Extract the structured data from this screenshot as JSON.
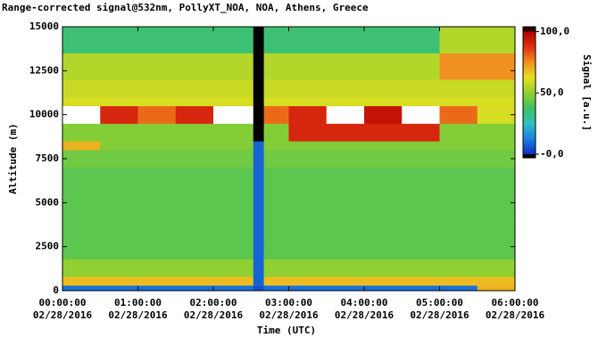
{
  "chart_data": {
    "type": "heatmap",
    "title": "Range-corrected signal@532nm, PollyXT_NOA, NOA, Athens, Greece",
    "xlabel": "Time (UTC)",
    "ylabel": "Altitude (m)",
    "colorbar_label": "Signal [a.u.]",
    "x_edges": [
      0,
      0.5,
      1,
      1.5,
      2,
      2.53,
      2.67,
      3,
      3.5,
      4,
      4.5,
      5,
      5.5,
      6
    ],
    "y_edges": [
      0,
      300,
      800,
      1800,
      2500,
      4000,
      5500,
      7000,
      8000,
      8500,
      9500,
      10500,
      11000,
      12000,
      13500,
      15000
    ],
    "z": [
      [
        10,
        10,
        10,
        10,
        10,
        5,
        10,
        10,
        10,
        10,
        10,
        10,
        70
      ],
      [
        68,
        68,
        68,
        68,
        68,
        8,
        68,
        68,
        68,
        68,
        68,
        68,
        68
      ],
      [
        50,
        50,
        50,
        50,
        50,
        8,
        50,
        50,
        50,
        50,
        50,
        50,
        50
      ],
      [
        42,
        42,
        42,
        42,
        42,
        8,
        42,
        42,
        42,
        42,
        42,
        42,
        42
      ],
      [
        42,
        42,
        42,
        42,
        42,
        8,
        42,
        42,
        42,
        42,
        42,
        42,
        42
      ],
      [
        42,
        42,
        42,
        42,
        42,
        8,
        42,
        42,
        42,
        42,
        42,
        42,
        42
      ],
      [
        42,
        42,
        42,
        42,
        42,
        8,
        42,
        42,
        42,
        42,
        42,
        42,
        42
      ],
      [
        45,
        45,
        45,
        45,
        45,
        8,
        45,
        45,
        45,
        45,
        45,
        45,
        45
      ],
      [
        70,
        48,
        48,
        48,
        48,
        8,
        48,
        48,
        48,
        48,
        48,
        48,
        48
      ],
      [
        48,
        48,
        48,
        48,
        48,
        -5,
        48,
        90,
        90,
        90,
        90,
        48,
        48
      ],
      [
        105,
        90,
        80,
        90,
        105,
        -5,
        80,
        90,
        105,
        95,
        105,
        80,
        60
      ],
      [
        60,
        60,
        60,
        60,
        60,
        -5,
        60,
        60,
        60,
        60,
        60,
        60,
        60
      ],
      [
        58,
        58,
        58,
        58,
        58,
        -5,
        58,
        58,
        58,
        58,
        58,
        58,
        58
      ],
      [
        55,
        55,
        55,
        55,
        55,
        -5,
        55,
        55,
        55,
        55,
        55,
        75,
        75
      ],
      [
        35,
        35,
        35,
        35,
        35,
        -5,
        35,
        35,
        35,
        35,
        35,
        55,
        55
      ]
    ],
    "xlim": [
      0,
      6
    ],
    "ylim": [
      0,
      15000
    ],
    "clim": [
      -3,
      104
    ],
    "xticks": [
      {
        "value": 0,
        "label": "00:00:00",
        "date": "02/28/2016"
      },
      {
        "value": 1,
        "label": "01:00:00",
        "date": "02/28/2016"
      },
      {
        "value": 2,
        "label": "02:00:00",
        "date": "02/28/2016"
      },
      {
        "value": 3,
        "label": "03:00:00",
        "date": "02/28/2016"
      },
      {
        "value": 4,
        "label": "04:00:00",
        "date": "02/28/2016"
      },
      {
        "value": 5,
        "label": "05:00:00",
        "date": "02/28/2016"
      },
      {
        "value": 6,
        "label": "06:00:00",
        "date": "02/28/2016"
      }
    ],
    "yticks": [
      0,
      2500,
      5000,
      7500,
      10000,
      12500,
      15000
    ],
    "cticks": [
      {
        "value": 0,
        "label": "-0,0"
      },
      {
        "value": 50,
        "label": "50,0"
      },
      {
        "value": 100,
        "label": "100,0"
      }
    ],
    "colors": [
      "#1030c0",
      "#1a80e0",
      "#30c0c0",
      "#40c060",
      "#90d030",
      "#e8e020",
      "#f09020",
      "#e03010",
      "#b00000"
    ],
    "under_color": "#000000",
    "over_color": "#ffffff"
  }
}
